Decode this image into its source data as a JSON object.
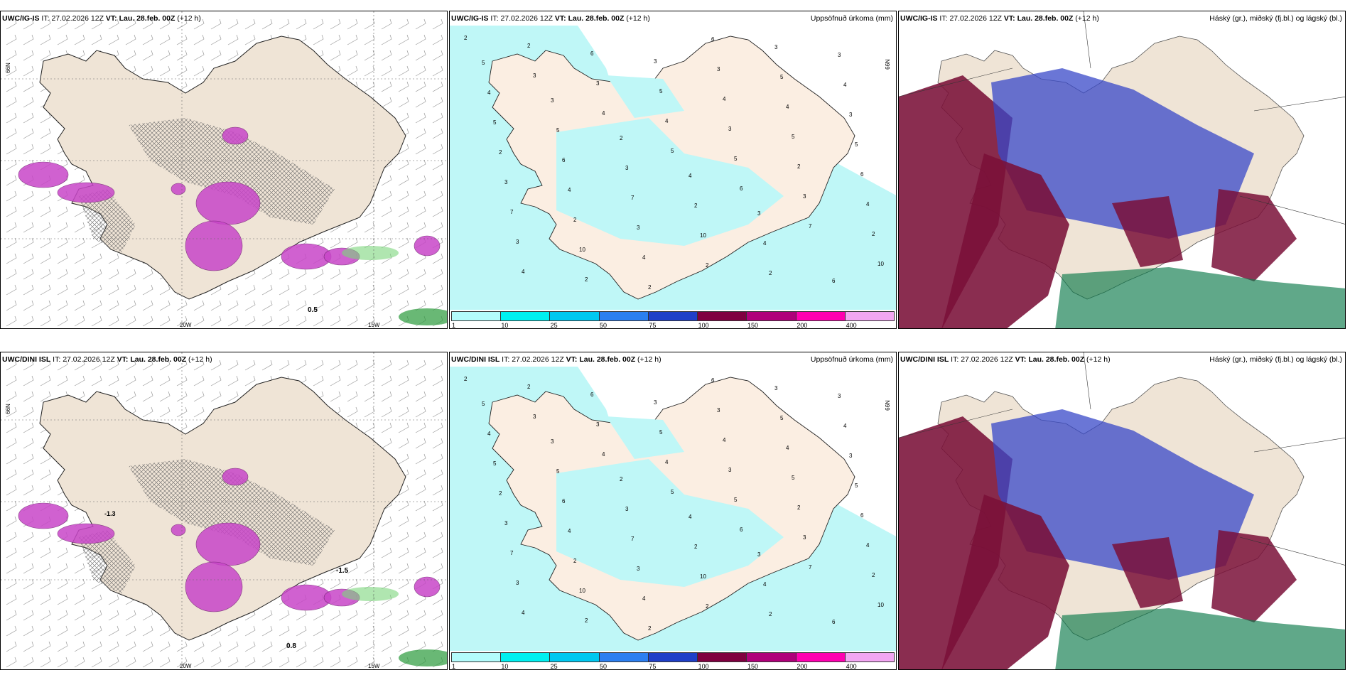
{
  "panels": [
    {
      "id": "r1c1",
      "model": "UWC/IG-IS",
      "it_label": "IT:",
      "it": "27.02.2026 12Z",
      "vt_label": "VT:",
      "vt": "Lau. 28.feb. 00Z",
      "lead": "(+12 h)",
      "title": "",
      "lat_left": "66N",
      "lat_right": "",
      "lon_ticks": [
        "20W",
        "15W"
      ],
      "extra": [
        "0.5"
      ]
    },
    {
      "id": "r1c2",
      "model": "UWC/IG-IS",
      "it_label": "IT:",
      "it": "27.02.2026 12Z",
      "vt_label": "VT:",
      "vt": "Lau. 28.feb. 00Z",
      "lead": "(+12 h)",
      "title": "Uppsöfnuð úrkoma (mm)",
      "lat_left": "",
      "lat_right": "66N",
      "lon_ticks": [],
      "extra": []
    },
    {
      "id": "r1c3",
      "model": "UWC/IG-IS",
      "it_label": "IT:",
      "it": "27.02.2026 12Z",
      "vt_label": "VT:",
      "vt": "Lau. 28.feb. 00Z",
      "lead": "(+12 h)",
      "title": "Háský (gr.), miðský (fj.bl.) og lágský (bl.)",
      "lat_left": "",
      "lat_right": "",
      "lon_ticks": [],
      "extra": []
    },
    {
      "id": "r2c1",
      "model": "UWC/DINI ISL",
      "it_label": "IT:",
      "it": "27.02.2026 12Z",
      "vt_label": "VT:",
      "vt": "Lau. 28.feb. 00Z",
      "lead": "(+12 h)",
      "title": "",
      "lat_left": "66N",
      "lat_right": "",
      "lon_ticks": [
        "20W",
        "15W"
      ],
      "extra": [
        "-1.5",
        "-1.3",
        "0.8"
      ]
    },
    {
      "id": "r2c2",
      "model": "UWC/DINI ISL",
      "it_label": "IT:",
      "it": "27.02.2026 12Z",
      "vt_label": "VT:",
      "vt": "Lau. 28.feb. 00Z",
      "lead": "(+12 h)",
      "title": "Uppsöfnuð úrkoma (mm)",
      "lat_left": "",
      "lat_right": "66N",
      "lon_ticks": [],
      "extra": []
    },
    {
      "id": "r2c3",
      "model": "UWC/DINI ISL",
      "it_label": "IT:",
      "it": "27.02.2026 12Z",
      "vt_label": "VT:",
      "vt": "Lau. 28.feb. 00Z",
      "lead": "(+12 h)",
      "title": "Háský (gr.), miðský (fj.bl.) og lágský (bl.)",
      "lat_left": "",
      "lat_right": "",
      "lon_ticks": [],
      "extra": []
    }
  ],
  "precip_legend": {
    "ticks": [
      "1",
      "10",
      "25",
      "50",
      "75",
      "100",
      "150",
      "200",
      "400"
    ],
    "colors": [
      "#b3fbfb",
      "#00f0f0",
      "#00c8f0",
      "#2c7ff0",
      "#1f3fc8",
      "#800040",
      "#b0007a",
      "#ff00b0",
      "#f2a6f2"
    ]
  },
  "colors": {
    "land": "#efe4d6",
    "land_precip": "#fbeee2",
    "sea_precip": "#bff7f7",
    "precip_pink": "#c846c8",
    "cloud_high": "#0a7a4a",
    "cloud_mid": "#7a1038",
    "cloud_low": "#3848c8"
  }
}
